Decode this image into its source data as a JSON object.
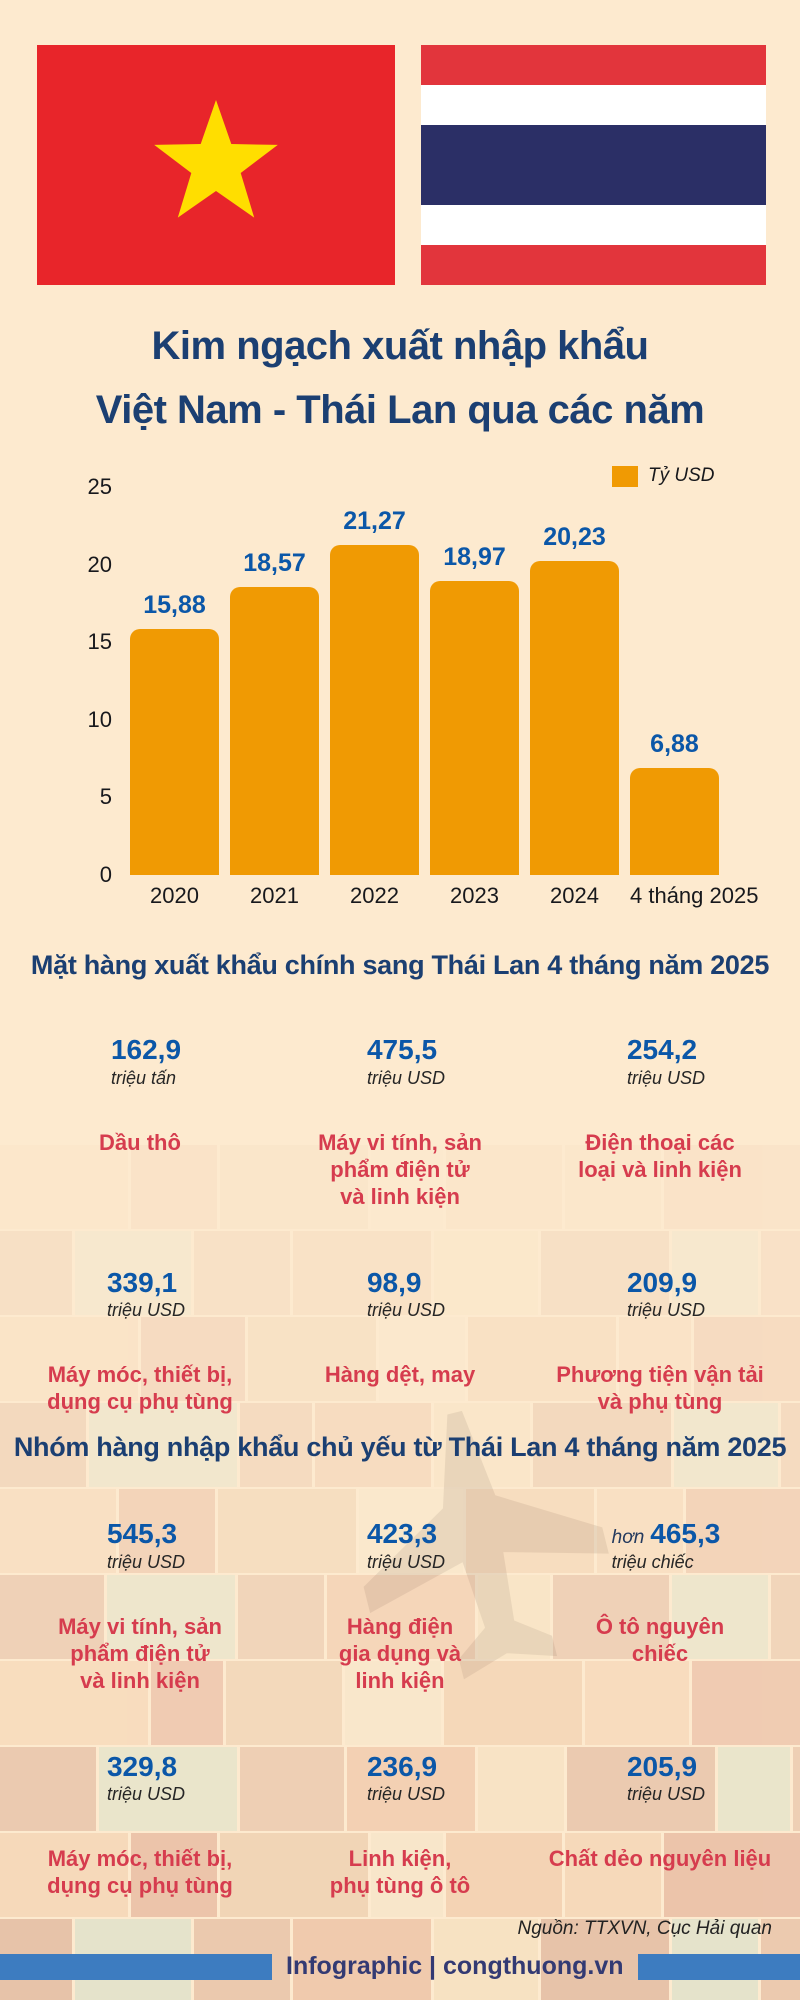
{
  "title": {
    "line1": "Kim ngạch xuất nhập khẩu",
    "line2": "Việt Nam - Thái Lan qua các năm"
  },
  "flags": {
    "left": "vietnam-flag",
    "right": "thailand-flag"
  },
  "chart_data": {
    "type": "bar",
    "title": "Kim ngạch xuất nhập khẩu Việt Nam - Thái Lan qua các năm",
    "legend": "Tỷ USD",
    "legend_position": "top-right",
    "categories": [
      "2020",
      "2021",
      "2022",
      "2023",
      "2024",
      "4 tháng 2025"
    ],
    "values": [
      15.88,
      18.57,
      21.27,
      18.97,
      20.23,
      6.88
    ],
    "value_labels": [
      "15,88",
      "18,57",
      "21,27",
      "18,97",
      "20,23",
      "6,88"
    ],
    "ylim": [
      0,
      25
    ],
    "yticks": [
      0,
      5,
      10,
      15,
      20,
      25
    ],
    "grid": false,
    "bar_color": "#f09a03",
    "value_label_color": "#0b57a8"
  },
  "sections": [
    {
      "header": "Mặt hàng xuất khẩu chính sang Thái Lan 4 tháng năm 2025",
      "items": [
        {
          "icon": "oil-barrel",
          "value": "162,9",
          "unit": "triệu tấn",
          "label": "Dầu thô"
        },
        {
          "icon": "laptop",
          "value": "475,5",
          "unit": "triệu USD",
          "label": "Máy vi tính, sản\nphẩm điện tử\nvà linh kiện"
        },
        {
          "icon": "smartphones",
          "value": "254,2",
          "unit": "triệu USD",
          "label": "Điện thoại các\nloại và linh kiện"
        },
        {
          "icon": "gear-tools",
          "value": "339,1",
          "unit": "triệu USD",
          "label": "Máy móc, thiết bị,\ndụng cụ phụ tùng"
        },
        {
          "icon": "textiles",
          "value": "98,9",
          "unit": "triệu USD",
          "label": "Hàng dệt, may"
        },
        {
          "icon": "truck",
          "value": "209,9",
          "unit": "triệu USD",
          "label": "Phương tiện vận tải\nvà phụ tùng"
        }
      ]
    },
    {
      "header": "Nhóm hàng nhập khẩu chủ yếu từ Thái Lan 4 tháng năm 2025",
      "items": [
        {
          "icon": "laptop-import",
          "value": "545,3",
          "unit": "triệu USD",
          "label": "Máy vi tính, sản\nphẩm điện tử\nvà linh kiện"
        },
        {
          "icon": "home-appliances",
          "value": "423,3",
          "unit": "triệu USD",
          "label": "Hàng điện\ngia dụng và\nlinh kiện"
        },
        {
          "icon": "car",
          "prefix": "hơn",
          "value": "465,3",
          "unit": "triệu chiếc",
          "label": "Ô tô nguyên\nchiếc"
        },
        {
          "icon": "excavator",
          "value": "329,8",
          "unit": "triệu USD",
          "label": "Máy móc, thiết bị,\ndụng cụ phụ tùng"
        },
        {
          "icon": "auto-parts",
          "value": "236,9",
          "unit": "triệu USD",
          "label": "Linh kiện,\nphụ tùng ô tô"
        },
        {
          "icon": "plastic-materials",
          "value": "205,9",
          "unit": "triệu USD",
          "label": "Chất dẻo nguyên liệu"
        }
      ]
    }
  ],
  "footer": {
    "source": "Nguồn: TTXVN, Cục Hải quan",
    "credit": "Infographic | congthuong.vn"
  },
  "colors": {
    "background": "#fdeacf",
    "title": "#1b3f72",
    "bar": "#f09a03",
    "value_blue": "#0b57a8",
    "label_red": "#d63c4e",
    "footer_bar_blue": "#3d7cc0",
    "footer_text": "#333a73"
  }
}
